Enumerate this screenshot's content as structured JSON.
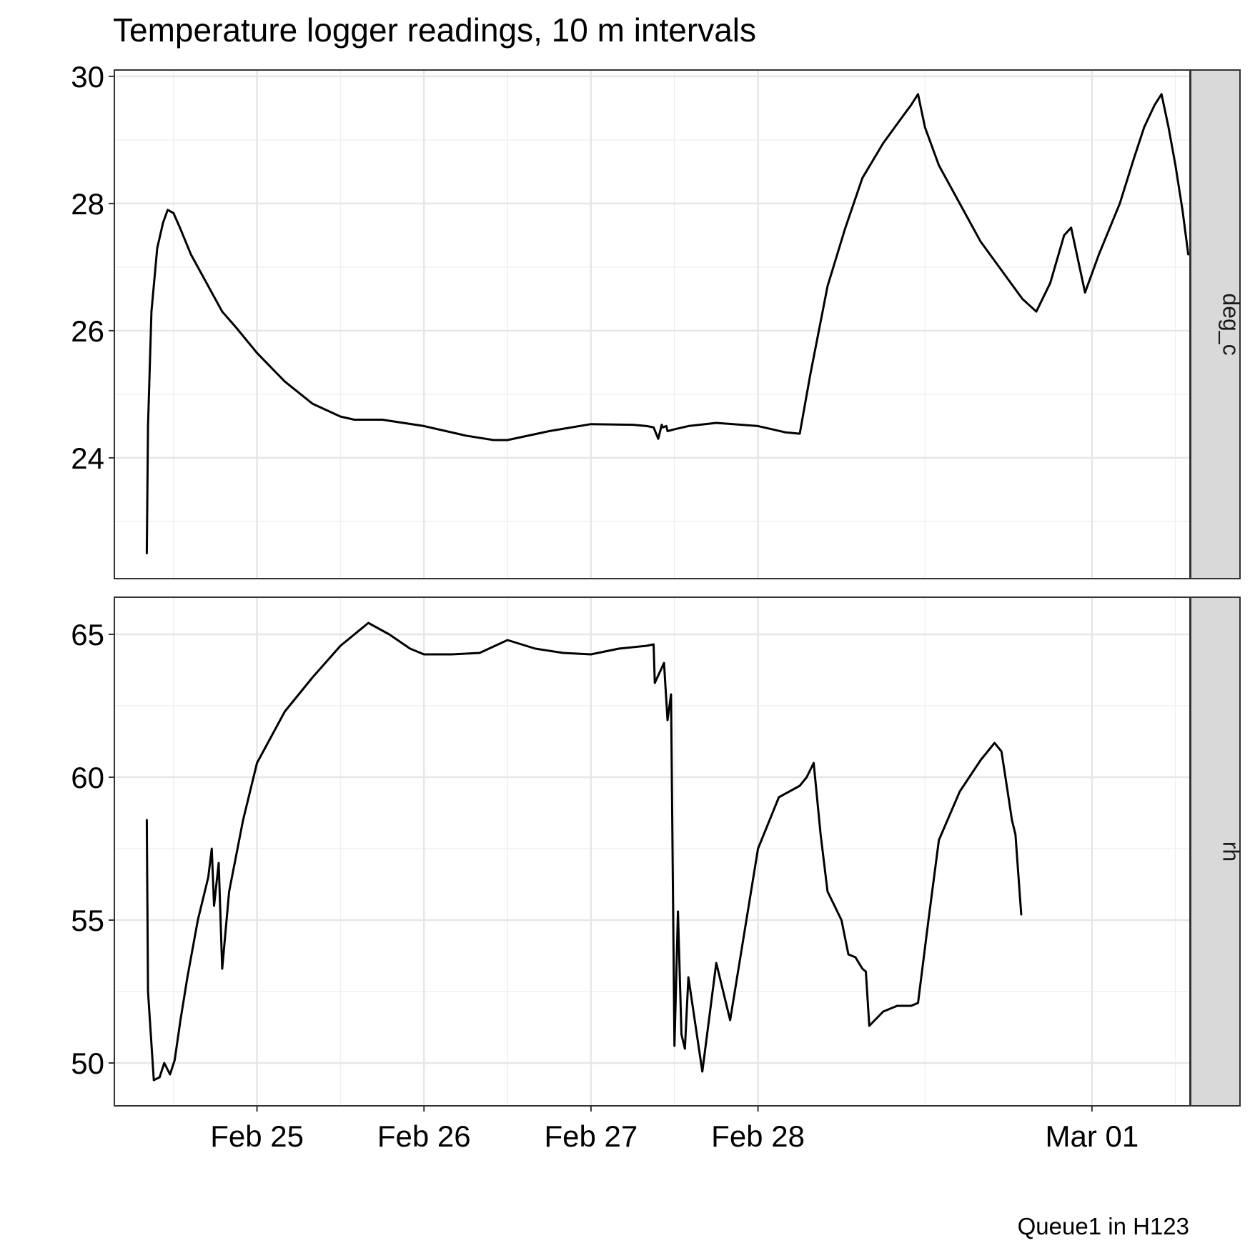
{
  "chart_data": {
    "type": "line",
    "title": "Temperature logger readings, 10 m intervals",
    "caption": "Queue1 in H123",
    "x_axis": {
      "ticks": [
        "2024-02-25T00:00",
        "2024-02-26T00:00",
        "2024-02-27T00:00",
        "2024-02-28T00:00",
        "2024-03-01T00:00"
      ],
      "tick_labels": [
        "Feb 25",
        "Feb 26",
        "Feb 27",
        "Feb 28",
        "Mar 01"
      ],
      "range": [
        "2024-02-24T03:30",
        "2024-03-01T14:05"
      ]
    },
    "grid": true,
    "line_color": "#000000",
    "strip_fill": "#d9d9d9",
    "facets": [
      {
        "strip_label": "deg_c",
        "ylim": [
          22.1,
          30.1
        ],
        "y_ticks": [
          24,
          26,
          28,
          30
        ],
        "y_tick_labels": [
          "24",
          "26",
          "28",
          "30"
        ],
        "series": [
          {
            "x": [
              "2024-02-24T08:10",
              "2024-02-24T08:20",
              "2024-02-24T08:50",
              "2024-02-24T09:40",
              "2024-02-24T10:30",
              "2024-02-24T11:10",
              "2024-02-24T12:00",
              "2024-02-24T13:00",
              "2024-02-24T14:30",
              "2024-02-24T16:00",
              "2024-02-24T17:30",
              "2024-02-24T19:00",
              "2024-02-24T21:00",
              "2024-02-25T00:00",
              "2024-02-25T04:00",
              "2024-02-25T08:00",
              "2024-02-25T12:00",
              "2024-02-25T14:00",
              "2024-02-25T18:00",
              "2024-02-26T00:00",
              "2024-02-26T06:00",
              "2024-02-26T10:00",
              "2024-02-26T12:00",
              "2024-02-26T18:00",
              "2024-02-27T00:00",
              "2024-02-27T06:00",
              "2024-02-27T08:00",
              "2024-02-27T09:00",
              "2024-02-27T09:40",
              "2024-02-27T10:10",
              "2024-02-27T10:20",
              "2024-02-27T10:50",
              "2024-02-27T11:00",
              "2024-02-27T12:00",
              "2024-02-27T14:00",
              "2024-02-27T18:00",
              "2024-02-28T00:00",
              "2024-02-28T04:00",
              "2024-02-28T06:00",
              "2024-02-28T07:30",
              "2024-02-28T10:00",
              "2024-02-28T12:30",
              "2024-02-28T15:00",
              "2024-02-28T18:00",
              "2024-02-28T21:00",
              "2024-02-28T22:00",
              "2024-02-28T23:00",
              "2024-02-29T00:00",
              "2024-02-29T02:00",
              "2024-02-29T05:00",
              "2024-02-29T08:00",
              "2024-02-29T10:00",
              "2024-02-29T12:00",
              "2024-02-29T14:00",
              "2024-02-29T16:00",
              "2024-02-29T18:00",
              "2024-02-29T20:00",
              "2024-02-29T21:00",
              "2024-02-29T23:00",
              "2024-03-01T01:00",
              "2024-03-01T04:00",
              "2024-03-01T06:00",
              "2024-03-01T07:30",
              "2024-03-01T09:00",
              "2024-03-01T10:00",
              "2024-03-01T11:00",
              "2024-03-01T12:00",
              "2024-03-01T13:00",
              "2024-03-01T13:50"
            ],
            "y": [
              22.5,
              24.5,
              26.3,
              27.3,
              27.7,
              27.9,
              27.85,
              27.6,
              27.2,
              26.9,
              26.6,
              26.3,
              26.05,
              25.65,
              25.2,
              24.85,
              24.65,
              24.6,
              24.6,
              24.5,
              24.35,
              24.28,
              24.28,
              24.42,
              24.53,
              24.52,
              24.5,
              24.48,
              24.3,
              24.52,
              24.48,
              24.5,
              24.42,
              24.45,
              24.5,
              24.55,
              24.5,
              24.4,
              24.38,
              25.3,
              26.7,
              27.6,
              28.4,
              28.95,
              29.4,
              29.55,
              29.72,
              29.2,
              28.6,
              28.0,
              27.4,
              27.1,
              26.8,
              26.5,
              26.3,
              26.75,
              27.5,
              27.62,
              26.6,
              27.2,
              28.0,
              28.7,
              29.2,
              29.55,
              29.72,
              29.2,
              28.6,
              27.9,
              27.2
            ]
          }
        ]
      },
      {
        "strip_label": "rh",
        "ylim": [
          48.5,
          66.3
        ],
        "y_ticks": [
          50,
          55,
          60,
          65
        ],
        "y_tick_labels": [
          "50",
          "55",
          "60",
          "65"
        ],
        "series": [
          {
            "x": [
              "2024-02-24T08:10",
              "2024-02-24T08:20",
              "2024-02-24T09:10",
              "2024-02-24T10:00",
              "2024-02-24T10:40",
              "2024-02-24T11:30",
              "2024-02-24T12:10",
              "2024-02-24T13:00",
              "2024-02-24T14:00",
              "2024-02-24T15:30",
              "2024-02-24T17:00",
              "2024-02-24T17:30",
              "2024-02-24T17:50",
              "2024-02-24T18:30",
              "2024-02-24T19:00",
              "2024-02-24T20:00",
              "2024-02-24T22:00",
              "2024-02-25T00:00",
              "2024-02-25T04:00",
              "2024-02-25T08:00",
              "2024-02-25T12:00",
              "2024-02-25T16:00",
              "2024-02-25T19:00",
              "2024-02-25T22:00",
              "2024-02-26T00:00",
              "2024-02-26T04:00",
              "2024-02-26T08:00",
              "2024-02-26T12:00",
              "2024-02-26T16:00",
              "2024-02-26T20:00",
              "2024-02-27T00:00",
              "2024-02-27T04:00",
              "2024-02-27T08:00",
              "2024-02-27T09:00",
              "2024-02-27T09:10",
              "2024-02-27T10:30",
              "2024-02-27T11:00",
              "2024-02-27T11:30",
              "2024-02-27T12:00",
              "2024-02-27T12:30",
              "2024-02-27T13:00",
              "2024-02-27T13:30",
              "2024-02-27T14:00",
              "2024-02-27T16:00",
              "2024-02-27T18:00",
              "2024-02-27T20:00",
              "2024-02-27T22:00",
              "2024-02-28T00:00",
              "2024-02-28T03:00",
              "2024-02-28T06:00",
              "2024-02-28T07:00",
              "2024-02-28T08:00",
              "2024-02-28T09:00",
              "2024-02-28T10:00",
              "2024-02-28T11:00",
              "2024-02-28T12:00",
              "2024-02-28T13:00",
              "2024-02-28T14:00",
              "2024-02-28T15:00",
              "2024-02-28T15:30",
              "2024-02-28T16:00",
              "2024-02-28T18:00",
              "2024-02-28T20:00",
              "2024-02-28T22:00",
              "2024-02-28T23:00",
              "2024-02-29T00:30",
              "2024-02-29T02:00",
              "2024-02-29T05:00",
              "2024-02-29T08:00",
              "2024-02-29T10:00",
              "2024-02-29T11:00",
              "2024-02-29T12:00",
              "2024-02-29T12:30",
              "2024-02-29T13:00",
              "2024-02-29T13:50"
            ],
            "y": [
              58.5,
              52.5,
              49.4,
              49.5,
              50.0,
              49.6,
              50.1,
              51.5,
              53.0,
              55.0,
              56.5,
              57.5,
              55.5,
              57.0,
              53.3,
              56.0,
              58.5,
              60.5,
              62.3,
              63.5,
              64.6,
              65.4,
              65.0,
              64.5,
              64.3,
              64.3,
              64.35,
              64.8,
              64.5,
              64.35,
              64.3,
              64.5,
              64.6,
              64.65,
              63.3,
              64.0,
              62.0,
              62.9,
              50.6,
              55.3,
              51.0,
              50.5,
              53.0,
              49.7,
              53.5,
              51.5,
              54.5,
              57.5,
              59.3,
              59.7,
              60.0,
              60.5,
              58.0,
              56.0,
              55.5,
              55.0,
              53.8,
              53.7,
              53.3,
              53.2,
              51.3,
              51.8,
              52.0,
              52.0,
              52.1,
              55.0,
              57.8,
              59.5,
              60.6,
              61.2,
              60.9,
              59.3,
              58.5,
              58.0,
              55.2
            ]
          }
        ]
      }
    ]
  }
}
